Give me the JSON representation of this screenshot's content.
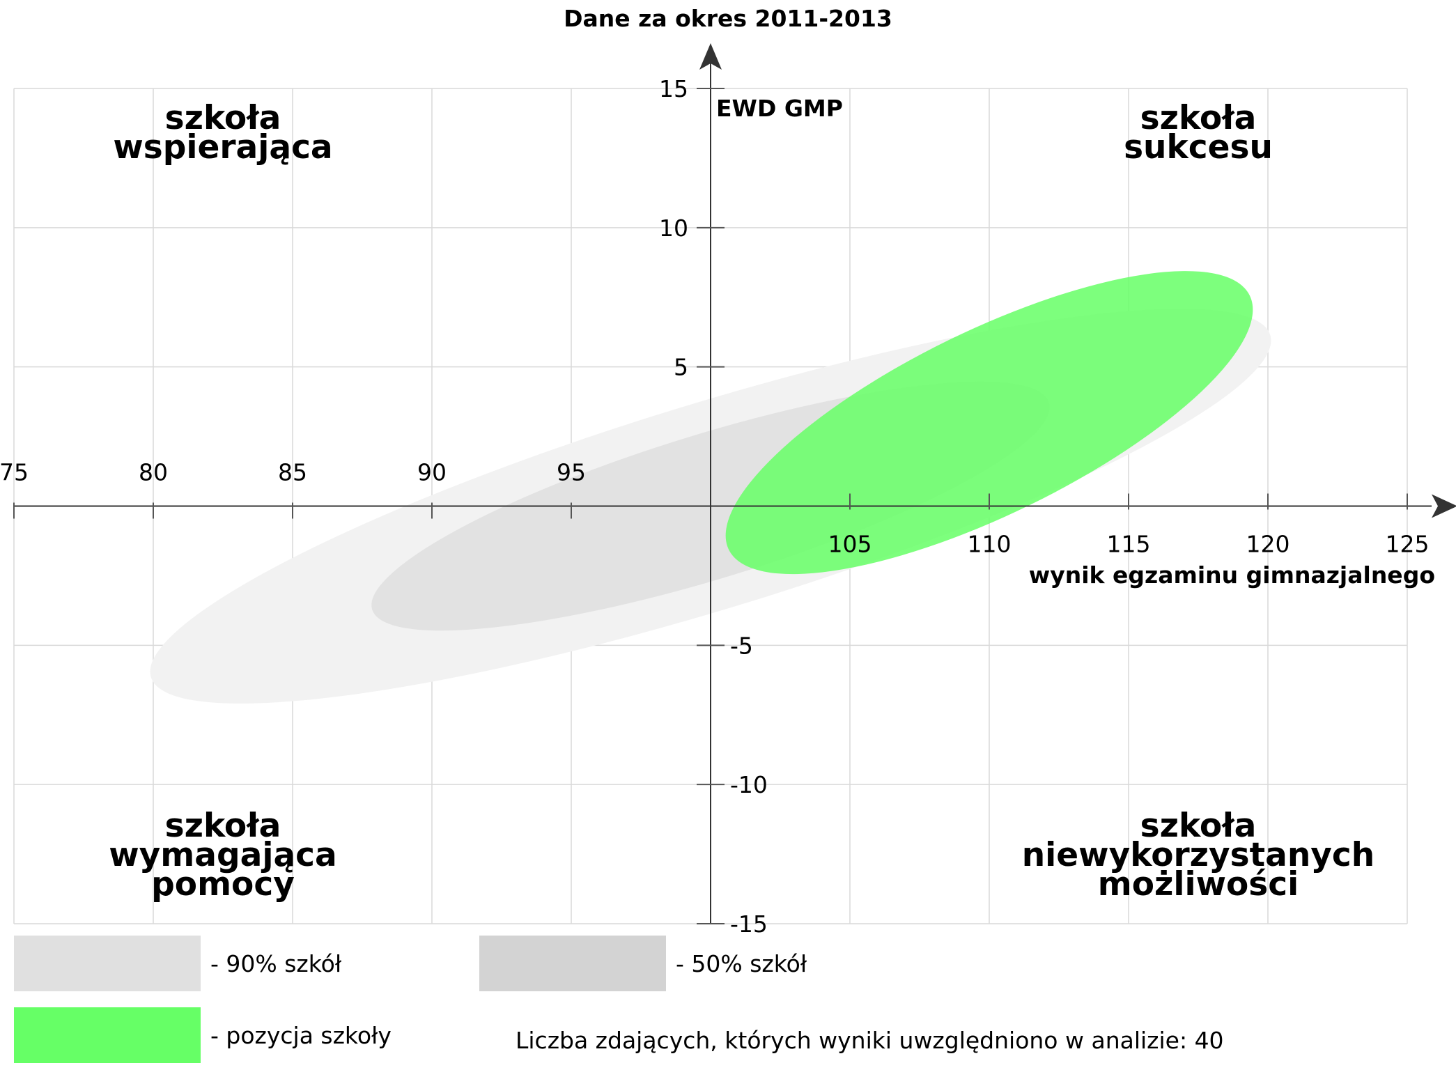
{
  "chart_data": {
    "type": "scatter",
    "title": "Dane za okres 2011-2013",
    "xlabel": "wynik egzaminu gimnazjalnego",
    "ylabel": "EWD GMP",
    "xlim": [
      75,
      125
    ],
    "ylim": [
      -15,
      15
    ],
    "x_origin": 100,
    "y_origin": 0,
    "x_ticks_above": [
      75,
      80,
      85,
      90,
      95
    ],
    "x_ticks_below": [
      105,
      110,
      115,
      120,
      125
    ],
    "y_ticks": [
      15,
      10,
      5,
      -5,
      -10,
      -15
    ],
    "grid": true,
    "quadrants": {
      "top_left": [
        "szkoła",
        "wspierająca"
      ],
      "top_right": [
        "szkoła",
        "sukcesu"
      ],
      "bottom_left": [
        "szkoła",
        "wymagająca",
        "pomocy"
      ],
      "bottom_right": [
        "szkoła",
        "niewykorzystanych",
        "możliwości"
      ]
    },
    "ellipses": [
      {
        "name": "- 90% szkół",
        "cx": 100,
        "cy": 0,
        "rx": 21,
        "ry": 3.7,
        "angle": 17,
        "color": "#f2f2f2"
      },
      {
        "name": "- 50% szkół",
        "cx": 100,
        "cy": 0,
        "rx": 12.7,
        "ry": 2.6,
        "angle": 17,
        "color": "#e2e2e2"
      },
      {
        "name": "- pozycja szkoły",
        "cx": 110,
        "cy": 3.0,
        "rx": 10.4,
        "ry": 3.3,
        "angle": 26,
        "color": "#66ff66",
        "opacity": 0.85
      }
    ],
    "legend": [
      {
        "label": "- 90% szkół",
        "color": "#e0e0e0"
      },
      {
        "label": "- 50% szkół",
        "color": "#d3d3d3"
      },
      {
        "label": "- pozycja szkoły",
        "color": "#66ff66"
      }
    ],
    "footer": "Liczba zdających, których wyniki uwzględniono w analizie: 40"
  }
}
